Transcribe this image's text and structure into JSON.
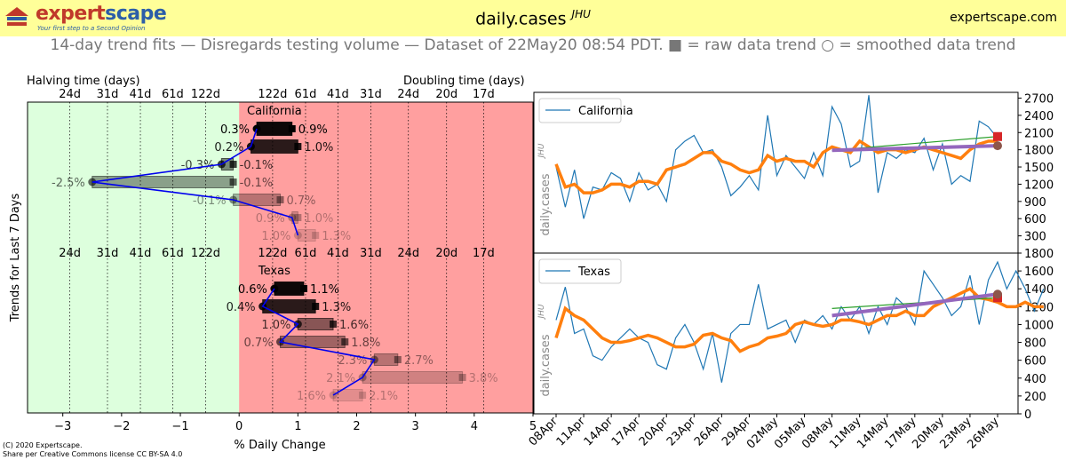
{
  "header": {
    "logo_main": "expert",
    "logo_accent": "scape",
    "logo_tagline": "Your first step to a Second Opinion",
    "title": "daily.cases",
    "title_sup": "JHU",
    "site": "expertscape.com",
    "subtitle": "14-day trend fits — Disregards testing volume — Dataset of 22May20 08:54 PDT.  ■ = raw data trend  ○ = smoothed data trend"
  },
  "footer": {
    "copyright": "(C) 2020 Expertscape.",
    "license": "Share per Creative Commons license CC BY-SA 4.0"
  },
  "colors": {
    "green_bg": "#ddffdd",
    "red_bg": "#ff9f9f",
    "raw": "#1f77b4",
    "smooth": "#ff7f0e",
    "fit_green": "#2ca02c",
    "fit_purple": "#9467bd",
    "marker_red": "#d62728",
    "marker_brown": "#8c564b"
  },
  "chart_data": [
    {
      "type": "bar",
      "xlabel": "% Daily Change",
      "ylabel": "Trends for Last 7 Days",
      "xlim": [
        -3.6,
        5
      ],
      "x_ticks": [
        -3,
        -2,
        -1,
        0,
        1,
        2,
        3,
        4,
        5
      ],
      "halving_label": "Halving time (days)",
      "doubling_label": "Doubling time (days)",
      "halving_ticks": [
        "24d",
        "31d",
        "41d",
        "61d",
        "122d"
      ],
      "doubling_ticks": [
        "122d",
        "61d",
        "41d",
        "31d",
        "24d",
        "20d",
        "17d"
      ],
      "groups": [
        {
          "name": "California",
          "rows": [
            {
              "left": 0.3,
              "right": 0.9
            },
            {
              "left": 0.2,
              "right": 1.0
            },
            {
              "left": -0.3,
              "right": -0.1
            },
            {
              "left": -2.5,
              "right": -0.1
            },
            {
              "left": -0.1,
              "right": 0.7
            },
            {
              "left": 0.9,
              "right": 1.0
            },
            {
              "left": 1.0,
              "right": 1.3
            }
          ]
        },
        {
          "name": "Texas",
          "rows": [
            {
              "left": 0.6,
              "right": 1.1
            },
            {
              "left": 0.4,
              "right": 1.3
            },
            {
              "left": 1.0,
              "right": 1.6
            },
            {
              "left": 0.7,
              "right": 1.8
            },
            {
              "left": 2.3,
              "right": 2.7
            },
            {
              "left": 2.1,
              "right": 3.8
            },
            {
              "left": 1.6,
              "right": 2.1
            }
          ]
        }
      ],
      "left_labels": [
        "0.3%",
        "0.2%",
        "-0.3%",
        "-2.5%",
        "-0.1%",
        "0.9%",
        "1.0%",
        "0.6%",
        "0.4%",
        "1.0%",
        "0.7%",
        "2.3%",
        "2.1%",
        "1.6%"
      ],
      "right_labels": [
        "0.9%",
        "1.0%",
        "-0.1%",
        "-0.1%",
        "0.7%",
        "1.0%",
        "1.3%",
        "1.1%",
        "1.3%",
        "1.6%",
        "1.8%",
        "2.7%",
        "3.8%",
        "2.1%"
      ]
    },
    {
      "type": "line",
      "name": "California",
      "ylabel": "daily.cases",
      "ylabel_sup": "JHU",
      "ylim": [
        0,
        2800
      ],
      "y_ticks": [
        300,
        600,
        900,
        1200,
        1500,
        1800,
        2100,
        2400,
        2700
      ],
      "x_ticks": [
        "08Apr",
        "11Apr",
        "14Apr",
        "17Apr",
        "20Apr",
        "23Apr",
        "26Apr",
        "29Apr",
        "02May",
        "05May",
        "08May",
        "11May",
        "14May",
        "17May",
        "20May",
        "23May",
        "26May"
      ],
      "series": [
        {
          "name": "California",
          "values": [
            1500,
            800,
            1450,
            600,
            1150,
            1100,
            1400,
            1300,
            900,
            1400,
            1100,
            1200,
            900,
            1800,
            1950,
            2050,
            1750,
            1800,
            1500,
            1000,
            1150,
            1350,
            1100,
            2400,
            1350,
            1700,
            1500,
            1300,
            1750,
            1350,
            2550,
            2250,
            1500,
            1600,
            2750,
            1050,
            1750,
            1650,
            1800,
            1750,
            2000,
            1450,
            1900,
            1200,
            1350,
            1250,
            2300,
            2200,
            2000
          ]
        },
        {
          "values": [
            1550,
            1150,
            1200,
            1050,
            1050,
            1100,
            1200,
            1200,
            1150,
            1250,
            1250,
            1200,
            1450,
            1500,
            1550,
            1650,
            1750,
            1750,
            1600,
            1550,
            1450,
            1400,
            1450,
            1700,
            1600,
            1650,
            1600,
            1600,
            1500,
            1750,
            1850,
            1800,
            1750,
            1950,
            1850,
            1750,
            1800,
            1800,
            1750,
            1800,
            1850,
            1800,
            1750,
            1700,
            1650,
            1800,
            1900,
            1950,
            1950
          ]
        }
      ],
      "fits": [
        {
          "from": 1790,
          "to": 2000,
          "end": 2030
        },
        {
          "from": 1790,
          "to": 1860,
          "end": 1870
        }
      ]
    },
    {
      "type": "line",
      "name": "Texas",
      "ylabel": "daily.cases",
      "ylabel_sup": "JHU",
      "ylim": [
        0,
        1800
      ],
      "y_ticks": [
        0,
        200,
        400,
        600,
        800,
        1000,
        1200,
        1400,
        1600,
        1800
      ],
      "x_ticks": [
        "08Apr",
        "11Apr",
        "14Apr",
        "17Apr",
        "20Apr",
        "23Apr",
        "26Apr",
        "29Apr",
        "02May",
        "05May",
        "08May",
        "11May",
        "14May",
        "17May",
        "20May",
        "23May",
        "26May"
      ],
      "series": [
        {
          "name": "Texas",
          "values": [
            1050,
            1420,
            900,
            950,
            650,
            600,
            750,
            850,
            950,
            850,
            800,
            550,
            500,
            850,
            1000,
            800,
            500,
            900,
            350,
            900,
            1000,
            1000,
            1450,
            950,
            1000,
            1050,
            800,
            1050,
            1000,
            1100,
            950,
            1200,
            1050,
            1200,
            900,
            1200,
            1000,
            1300,
            1200,
            1000,
            1600,
            1450,
            1300,
            1100,
            1200,
            1550,
            1000,
            1500,
            1700,
            1400,
            1600,
            1400,
            1150,
            1400
          ]
        },
        {
          "values": [
            850,
            1180,
            1100,
            1050,
            950,
            850,
            800,
            800,
            820,
            850,
            880,
            850,
            800,
            750,
            750,
            780,
            880,
            900,
            850,
            820,
            700,
            750,
            780,
            850,
            870,
            900,
            1000,
            1030,
            1000,
            980,
            1000,
            1050,
            1050,
            1030,
            1000,
            1050,
            1100,
            1100,
            1150,
            1100,
            1100,
            1200,
            1250,
            1300,
            1350,
            1400,
            1300,
            1280,
            1250,
            1200,
            1200,
            1250,
            1200,
            1200
          ]
        }
      ],
      "fits": [
        {
          "from": 1180,
          "to": 1300,
          "end": 1300
        },
        {
          "from": 1100,
          "to": 1320,
          "end": 1340
        }
      ]
    }
  ]
}
